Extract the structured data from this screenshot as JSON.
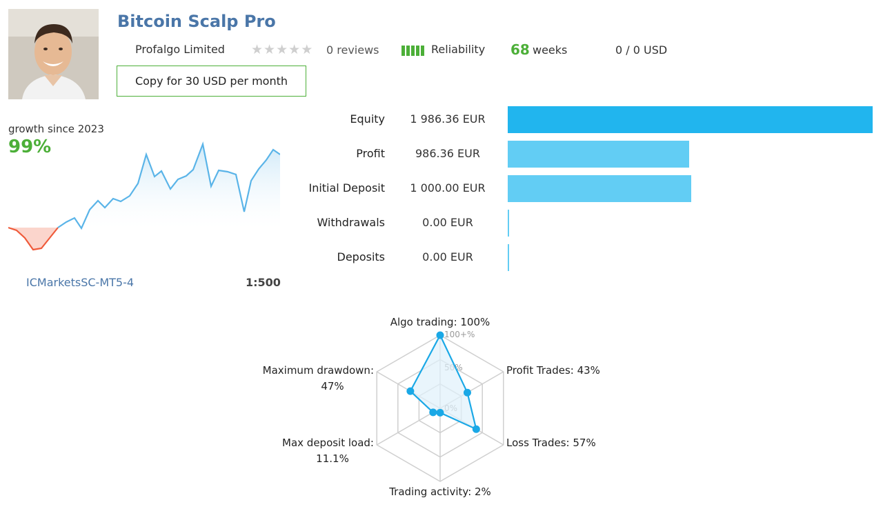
{
  "header": {
    "title": "Bitcoin Scalp Pro",
    "seller": "Profalgo Limited",
    "rating_stars": 0,
    "reviews": "0 reviews",
    "reliability_label": "Reliability",
    "weeks_value": "68",
    "weeks_label": "weeks",
    "usd": "0 / 0 USD",
    "copy_button": "Copy for 30 USD per month"
  },
  "growth": {
    "label": "growth since 2023",
    "value": "99%"
  },
  "account": {
    "server": "ICMarketsSC-MT5-4",
    "leverage": "1:500"
  },
  "stats": [
    {
      "label": "Equity",
      "value": "1 986.36 EUR",
      "amount": 1986.36,
      "color": "#21b5ee"
    },
    {
      "label": "Profit",
      "value": "986.36 EUR",
      "amount": 986.36,
      "color": "#62cdf4"
    },
    {
      "label": "Initial Deposit",
      "value": "1 000.00 EUR",
      "amount": 1000.0,
      "color": "#62cdf4"
    },
    {
      "label": "Withdrawals",
      "value": "0.00 EUR",
      "amount": 0,
      "color": "#62cdf4"
    },
    {
      "label": "Deposits",
      "value": "0.00 EUR",
      "amount": 0,
      "color": "#62cdf4"
    }
  ],
  "radar": {
    "scale_labels": [
      "100+%",
      "50%",
      "0%"
    ],
    "axes": [
      {
        "label": "Algo trading: 100%",
        "value": 100
      },
      {
        "label": "Profit Trades: 43%",
        "value": 43
      },
      {
        "label": "Loss Trades: 57%",
        "value": 57
      },
      {
        "label": "Trading activity: 2%",
        "value": 2
      },
      {
        "label": "Max deposit load:",
        "label2": "11.1%",
        "value": 11.1
      },
      {
        "label": "Maximum drawdown:",
        "label2": "47%",
        "value": 47
      }
    ]
  },
  "colors": {
    "accent_green": "#4caf38",
    "title_blue": "#4a76a8",
    "line_blue": "#5ab4e8",
    "drawdown_red": "#ef5a3a"
  }
}
